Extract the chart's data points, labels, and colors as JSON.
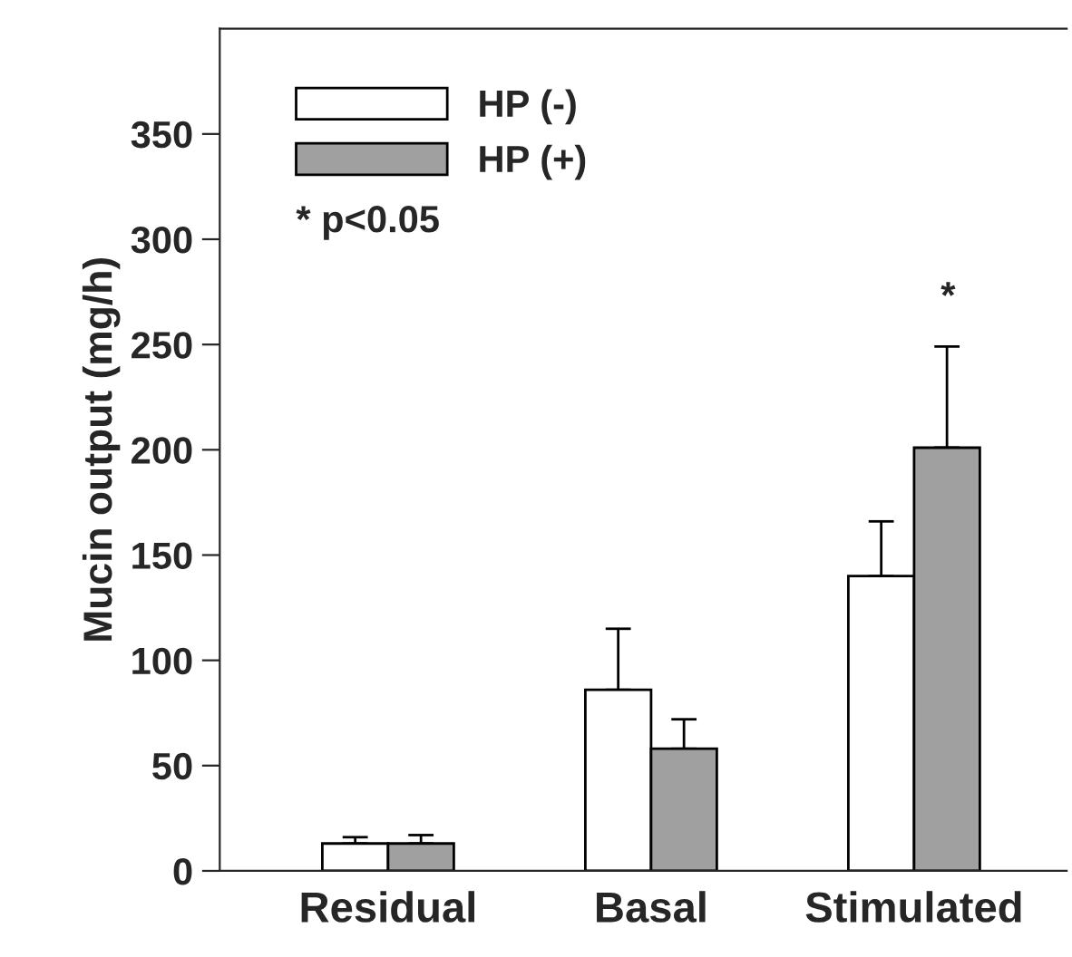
{
  "chart_data": {
    "type": "bar",
    "ylabel": "Mucin output (mg/h)",
    "categories": [
      "Residual",
      "Basal",
      "Stimulated"
    ],
    "series": [
      {
        "name": "HP (-)",
        "color": "#ffffff",
        "values": [
          13,
          86,
          140
        ],
        "errors": [
          [
            13,
            16
          ],
          [
            86,
            115
          ],
          [
            140,
            166
          ]
        ]
      },
      {
        "name": "HP (+)",
        "color": "#a0a0a0",
        "values": [
          13,
          58,
          201
        ],
        "errors": [
          [
            13,
            17
          ],
          [
            58,
            72
          ],
          [
            201,
            249
          ]
        ]
      }
    ],
    "ylim": [
      0,
      400
    ],
    "yticks": [
      0,
      50,
      100,
      150,
      200,
      250,
      300,
      350
    ],
    "annotations": [
      "* p<0.05",
      "*"
    ],
    "grid": false,
    "legend": "top left"
  }
}
